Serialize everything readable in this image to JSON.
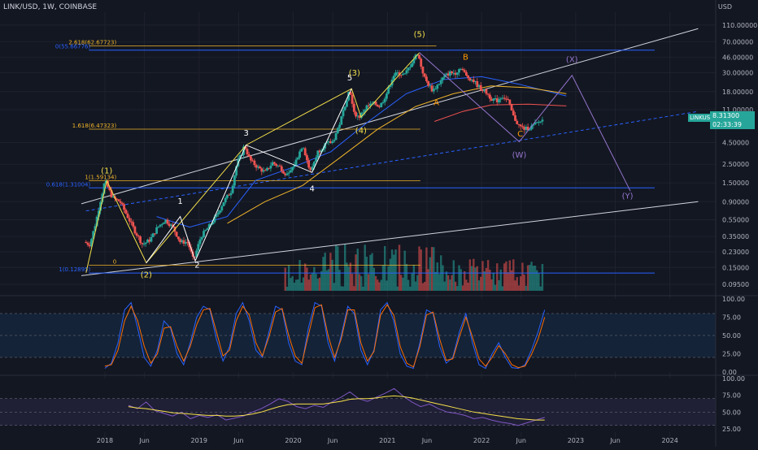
{
  "header": {
    "symbol": "LINK/USD, 1W, COINBASE",
    "currency": "USD"
  },
  "price_badge": {
    "ticker": "LINKUSD",
    "price": "8.31300",
    "countdown": "02:33:39"
  },
  "colors": {
    "background": "#131722",
    "up": "#26a69a",
    "down": "#ef5350",
    "fib": "#f0b429",
    "blue_level": "#2962ff",
    "channel": "#d1d4dc",
    "wave_white": "#ffffff",
    "wave_yellow": "#f5e04a",
    "wave_orange": "#ff9800",
    "wave_purple": "#9575cd",
    "ma_blue": "#2962ff",
    "ma_orange": "#f0b429",
    "ma_red": "#ef5350",
    "stoch_k": "#2962ff",
    "stoch_d": "#ff6d00",
    "rsi": "#7e57c2",
    "rsi_ma": "#f5e04a"
  },
  "chart_data": [
    {
      "type": "candlestick",
      "title": "",
      "scale": "log",
      "ylim": [
        0.085,
        140
      ],
      "xlim": [
        2017.75,
        2024.4
      ],
      "y_ticks": [
        "110.00000",
        "70.00000",
        "46.00000",
        "30.00000",
        "18.00000",
        "11.00000",
        "4.50000",
        "2.50000",
        "1.50000",
        "0.90000",
        "0.55000",
        "0.35000",
        "0.23000",
        "0.15000",
        "0.09500"
      ],
      "x_ticks": [
        {
          "label": "2018",
          "t": 2018.0
        },
        {
          "label": "Jun",
          "t": 2018.42
        },
        {
          "label": "2019",
          "t": 2019.0
        },
        {
          "label": "Jun",
          "t": 2019.42
        },
        {
          "label": "2020",
          "t": 2020.0
        },
        {
          "label": "Jun",
          "t": 2020.42
        },
        {
          "label": "2021",
          "t": 2021.0
        },
        {
          "label": "Jun",
          "t": 2021.42
        },
        {
          "label": "2022",
          "t": 2022.0
        },
        {
          "label": "Jun",
          "t": 2022.42
        },
        {
          "label": "2023",
          "t": 2023.0
        },
        {
          "label": "Jun",
          "t": 2023.42
        },
        {
          "label": "2024",
          "t": 2024.0
        }
      ],
      "price_path": [
        [
          2017.8,
          0.3
        ],
        [
          2017.86,
          0.28
        ],
        [
          2017.92,
          0.5
        ],
        [
          2017.97,
          0.9
        ],
        [
          2018.02,
          1.59
        ],
        [
          2018.1,
          1.0
        ],
        [
          2018.18,
          0.9
        ],
        [
          2018.26,
          0.6
        ],
        [
          2018.34,
          0.4
        ],
        [
          2018.42,
          0.28
        ],
        [
          2018.5,
          0.32
        ],
        [
          2018.58,
          0.45
        ],
        [
          2018.66,
          0.55
        ],
        [
          2018.74,
          0.45
        ],
        [
          2018.82,
          0.3
        ],
        [
          2018.9,
          0.3
        ],
        [
          2018.96,
          0.18
        ],
        [
          2019.04,
          0.35
        ],
        [
          2019.12,
          0.45
        ],
        [
          2019.2,
          0.6
        ],
        [
          2019.28,
          0.9
        ],
        [
          2019.36,
          1.2
        ],
        [
          2019.42,
          2.5
        ],
        [
          2019.48,
          3.5
        ],
        [
          2019.5,
          4.2
        ],
        [
          2019.56,
          2.8
        ],
        [
          2019.64,
          2.3
        ],
        [
          2019.72,
          2.0
        ],
        [
          2019.8,
          2.6
        ],
        [
          2019.88,
          2.3
        ],
        [
          2019.96,
          1.8
        ],
        [
          2020.04,
          2.6
        ],
        [
          2020.12,
          4.3
        ],
        [
          2020.2,
          2.0
        ],
        [
          2020.28,
          3.5
        ],
        [
          2020.36,
          4.3
        ],
        [
          2020.44,
          4.6
        ],
        [
          2020.52,
          8.0
        ],
        [
          2020.58,
          14.0
        ],
        [
          2020.62,
          19.5
        ],
        [
          2020.66,
          10.0
        ],
        [
          2020.72,
          9.0
        ],
        [
          2020.8,
          12.0
        ],
        [
          2020.88,
          13.0
        ],
        [
          2020.94,
          12.0
        ],
        [
          2021.02,
          18.0
        ],
        [
          2021.08,
          28.0
        ],
        [
          2021.14,
          30.0
        ],
        [
          2021.2,
          28.0
        ],
        [
          2021.28,
          40.0
        ],
        [
          2021.34,
          52.0
        ],
        [
          2021.38,
          35.0
        ],
        [
          2021.42,
          25.0
        ],
        [
          2021.5,
          18.5
        ],
        [
          2021.56,
          22.0
        ],
        [
          2021.62,
          27.0
        ],
        [
          2021.68,
          30.0
        ],
        [
          2021.74,
          30.0
        ],
        [
          2021.8,
          35.0
        ],
        [
          2021.86,
          27.0
        ],
        [
          2021.92,
          25.0
        ],
        [
          2022.0,
          20.0
        ],
        [
          2022.06,
          18.0
        ],
        [
          2022.12,
          15.0
        ],
        [
          2022.18,
          14.0
        ],
        [
          2022.24,
          16.0
        ],
        [
          2022.3,
          14.0
        ],
        [
          2022.36,
          9.0
        ],
        [
          2022.42,
          7.0
        ],
        [
          2022.48,
          6.5
        ],
        [
          2022.54,
          6.8
        ],
        [
          2022.6,
          7.5
        ],
        [
          2022.66,
          8.3
        ]
      ],
      "moving_averages": [
        {
          "color_key": "ma_blue",
          "points": [
            [
              2018.55,
              0.6
            ],
            [
              2018.9,
              0.45
            ],
            [
              2019.3,
              0.6
            ],
            [
              2019.6,
              1.6
            ],
            [
              2020.0,
              2.3
            ],
            [
              2020.4,
              3.5
            ],
            [
              2020.8,
              8.0
            ],
            [
              2021.2,
              17.0
            ],
            [
              2021.6,
              25.0
            ],
            [
              2022.0,
              27.0
            ],
            [
              2022.4,
              22.0
            ],
            [
              2022.9,
              16.0
            ]
          ]
        },
        {
          "color_key": "ma_orange",
          "points": [
            [
              2019.3,
              0.5
            ],
            [
              2019.7,
              0.9
            ],
            [
              2020.1,
              1.4
            ],
            [
              2020.5,
              3.0
            ],
            [
              2020.9,
              6.5
            ],
            [
              2021.3,
              12.0
            ],
            [
              2021.7,
              17.0
            ],
            [
              2022.1,
              21.0
            ],
            [
              2022.5,
              20.0
            ],
            [
              2022.9,
              17.0
            ]
          ]
        },
        {
          "color_key": "ma_red",
          "points": [
            [
              2021.5,
              8.0
            ],
            [
              2021.8,
              10.5
            ],
            [
              2022.1,
              12.5
            ],
            [
              2022.5,
              12.8
            ],
            [
              2022.9,
              12.2
            ]
          ]
        }
      ],
      "fib_levels": [
        {
          "label": "2.618(62.67723)",
          "price": 62.67723,
          "t_start": 2017.83,
          "t_end": 2021.52,
          "color_key": "fib"
        },
        {
          "label": "1.618(6.47323)",
          "price": 6.47323,
          "t_start": 2017.83,
          "t_end": 2021.35,
          "color_key": "fib"
        },
        {
          "label": "1(1.59134)",
          "price": 1.59134,
          "t_start": 2017.83,
          "t_end": 2021.35,
          "color_key": "fib"
        },
        {
          "label": "0",
          "price": 0.16,
          "t_start": 2017.83,
          "t_end": 2021.35,
          "color_key": "fib"
        }
      ],
      "blue_levels": [
        {
          "label": "0(55.66776)",
          "price": 55.66776
        },
        {
          "label": "0.618(1.31004)",
          "price": 1.31004
        },
        {
          "label": "1(0.12895)",
          "price": 0.12895
        }
      ],
      "channel_lines": [
        {
          "style": "solid",
          "points": [
            [
              2017.75,
              0.85
            ],
            [
              2024.3,
              100.0
            ]
          ]
        },
        {
          "style": "solid",
          "points": [
            [
              2017.75,
              0.12
            ],
            [
              2024.3,
              0.9
            ]
          ]
        },
        {
          "style": "dashed",
          "color_key": "blue_level",
          "points": [
            [
              2017.8,
              0.7
            ],
            [
              2024.3,
              10.5
            ]
          ]
        }
      ],
      "wave_labels": [
        {
          "text": "(1)",
          "t": 2018.02,
          "price": 1.95,
          "color_key": "wave_yellow"
        },
        {
          "text": "(2)",
          "t": 2018.44,
          "price": 0.115,
          "color_key": "wave_yellow"
        },
        {
          "text": "1",
          "t": 2018.8,
          "price": 0.85,
          "color_key": "wave_white"
        },
        {
          "text": "2",
          "t": 2018.98,
          "price": 0.15,
          "color_key": "wave_white"
        },
        {
          "text": "3",
          "t": 2019.5,
          "price": 5.4,
          "color_key": "wave_white"
        },
        {
          "text": "4",
          "t": 2020.2,
          "price": 1.2,
          "color_key": "wave_white"
        },
        {
          "text": "5",
          "t": 2020.6,
          "price": 24.5,
          "color_key": "wave_white"
        },
        {
          "text": "(3)",
          "t": 2020.65,
          "price": 28.0,
          "color_key": "wave_yellow"
        },
        {
          "text": "(4)",
          "t": 2020.72,
          "price": 5.8,
          "color_key": "wave_yellow"
        },
        {
          "text": "(5)",
          "t": 2021.34,
          "price": 80.0,
          "color_key": "wave_yellow"
        },
        {
          "text": "A",
          "t": 2021.52,
          "price": 12.5,
          "color_key": "wave_orange"
        },
        {
          "text": "B",
          "t": 2021.83,
          "price": 43.0,
          "color_key": "wave_orange"
        },
        {
          "text": "C",
          "t": 2022.41,
          "price": 5.3,
          "color_key": "wave_orange"
        },
        {
          "text": "(W)",
          "t": 2022.4,
          "price": 3.0,
          "color_key": "wave_purple"
        },
        {
          "text": "(X)",
          "t": 2022.96,
          "price": 40.0,
          "color_key": "wave_purple"
        },
        {
          "text": "(Y)",
          "t": 2023.55,
          "price": 0.98,
          "color_key": "wave_purple"
        }
      ],
      "wave_paths": [
        {
          "color_key": "wave_yellow",
          "points": [
            [
              2017.8,
              0.13
            ],
            [
              2018.02,
              1.59
            ],
            [
              2018.44,
              0.17
            ],
            [
              2019.5,
              4.2
            ],
            [
              2020.62,
              19.5
            ],
            [
              2020.72,
              9.0
            ],
            [
              2021.34,
              52.0
            ]
          ]
        },
        {
          "color_key": "wave_white",
          "points": [
            [
              2018.44,
              0.17
            ],
            [
              2018.8,
              0.6
            ],
            [
              2018.96,
              0.18
            ],
            [
              2019.5,
              4.2
            ],
            [
              2020.2,
              2.0
            ],
            [
              2020.62,
              19.5
            ]
          ]
        },
        {
          "color_key": "wave_purple",
          "points": [
            [
              2021.34,
              52.0
            ],
            [
              2022.4,
              4.6
            ],
            [
              2022.96,
              28.0
            ],
            [
              2023.58,
              1.2
            ]
          ]
        }
      ],
      "volume_bars_note": "volume bars drawn from price path"
    },
    {
      "type": "line",
      "title": "",
      "ylim": [
        0,
        100
      ],
      "y_ticks": [
        "100.00",
        "75.00",
        "50.00",
        "25.00",
        "0.00"
      ],
      "series": [
        {
          "color_key": "stoch_k",
          "values": [
            5,
            12,
            40,
            85,
            95,
            60,
            20,
            8,
            30,
            70,
            60,
            25,
            10,
            40,
            75,
            90,
            85,
            45,
            15,
            35,
            80,
            95,
            70,
            30,
            20,
            55,
            90,
            85,
            40,
            15,
            10,
            60,
            95,
            90,
            40,
            15,
            50,
            90,
            80,
            30,
            10,
            30,
            85,
            95,
            70,
            25,
            8,
            5,
            40,
            85,
            80,
            35,
            12,
            20,
            55,
            80,
            40,
            10,
            5,
            25,
            40,
            20,
            6,
            5,
            10,
            30,
            55,
            85
          ]
        },
        {
          "color_key": "stoch_d",
          "values": [
            8,
            10,
            30,
            70,
            90,
            70,
            35,
            12,
            25,
            60,
            62,
            35,
            15,
            35,
            65,
            85,
            87,
            55,
            22,
            30,
            70,
            90,
            78,
            40,
            22,
            48,
            82,
            87,
            50,
            22,
            12,
            50,
            88,
            92,
            50,
            20,
            45,
            85,
            85,
            40,
            15,
            28,
            78,
            92,
            78,
            35,
            12,
            7,
            35,
            78,
            82,
            45,
            16,
            18,
            48,
            75,
            48,
            18,
            8,
            20,
            36,
            25,
            10,
            6,
            8,
            24,
            45,
            75
          ]
        }
      ]
    },
    {
      "type": "line",
      "title": "",
      "ylim": [
        20,
        100
      ],
      "y_ticks": [
        "100.00",
        "75.00",
        "50.00",
        "25.00"
      ],
      "series": [
        {
          "color_key": "rsi",
          "values": [
            60,
            55,
            65,
            52,
            48,
            44,
            50,
            40,
            45,
            42,
            46,
            38,
            41,
            44,
            50,
            55,
            62,
            70,
            66,
            58,
            55,
            60,
            57,
            65,
            72,
            80,
            70,
            66,
            72,
            78,
            85,
            74,
            65,
            58,
            62,
            55,
            50,
            48,
            45,
            40,
            42,
            38,
            35,
            33,
            30,
            34,
            38,
            42
          ]
        },
        {
          "color_key": "rsi_ma",
          "values": [
            58,
            56,
            55,
            53,
            51,
            49,
            48,
            47,
            46,
            45,
            45,
            44,
            44,
            45,
            47,
            50,
            54,
            58,
            61,
            62,
            62,
            62,
            62,
            64,
            66,
            69,
            70,
            70,
            71,
            73,
            74,
            73,
            71,
            68,
            65,
            62,
            59,
            56,
            53,
            50,
            48,
            46,
            44,
            42,
            40,
            39,
            38,
            38
          ]
        }
      ]
    }
  ]
}
